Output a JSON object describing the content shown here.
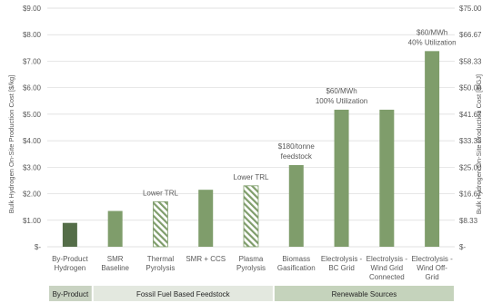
{
  "chart_data": {
    "type": "bar",
    "ylabel": "Bulk Hydrogen On-Site Production Cost [$/kg]",
    "ylabel_right": "Bulk Hydrogen On-Site Production Cost [$/GJ]",
    "ylim": [
      0,
      9
    ],
    "y2lim": [
      0,
      75
    ],
    "yticks": [
      "$-",
      "$1.00",
      "$2.00",
      "$3.00",
      "$4.00",
      "$5.00",
      "$6.00",
      "$7.00",
      "$8.00",
      "$9.00"
    ],
    "y2ticks": [
      "$-",
      "$8.33",
      "$16.67",
      "$25.00",
      "$33.33",
      "$41.67",
      "$50.00",
      "$58.33",
      "$66.67",
      "$75.00"
    ],
    "grid": true,
    "categories": [
      [
        "By-Product",
        "Hydrogen"
      ],
      [
        "SMR",
        "Baseline"
      ],
      [
        "Thermal",
        "Pyrolysis"
      ],
      [
        "SMR + CCS"
      ],
      [
        "Plasma",
        "Pyrolysis"
      ],
      [
        "Biomass",
        "Gasification"
      ],
      [
        "Electrolysis -",
        "BC Grid"
      ],
      [
        "Electrolysis -",
        "Wind Grid",
        "Connected"
      ],
      [
        "Electrolysis -",
        "Wind Off-",
        "Grid"
      ]
    ],
    "values": [
      0.9,
      1.35,
      1.7,
      2.15,
      2.3,
      3.08,
      5.17,
      5.17,
      7.38
    ],
    "bar_styles": [
      "dark",
      "solid",
      "hatched",
      "solid",
      "hatched",
      "solid",
      "solid",
      "solid",
      "solid"
    ],
    "annotations": [
      {
        "bar": 2,
        "lines": [
          "Lower TRL"
        ]
      },
      {
        "bar": 4,
        "lines": [
          "Lower TRL"
        ]
      },
      {
        "bar": 5,
        "lines": [
          "$180/tonne",
          "feedstock"
        ]
      },
      {
        "bar": 6,
        "lines": [
          "$60/MWh",
          "100% Utilization"
        ]
      },
      {
        "bar": 8,
        "lines": [
          "$60/MWh",
          "40% Utilization"
        ]
      }
    ],
    "groups": [
      {
        "label": "By-Product",
        "start": 0,
        "end": 0
      },
      {
        "label": "Fossil Fuel Based Feedstock",
        "start": 1,
        "end": 4
      },
      {
        "label": "Renewable Sources",
        "start": 5,
        "end": 8
      }
    ]
  },
  "colors": {
    "bar_solid": "#7f9d6b",
    "bar_dark": "#546d48",
    "hatch": "#7f9d6b",
    "group_byproduct": "#c9d3c2",
    "group_fossil": "#e3e8df",
    "group_renewable": "#c5d3bc",
    "grid": "#d9d9d9"
  }
}
